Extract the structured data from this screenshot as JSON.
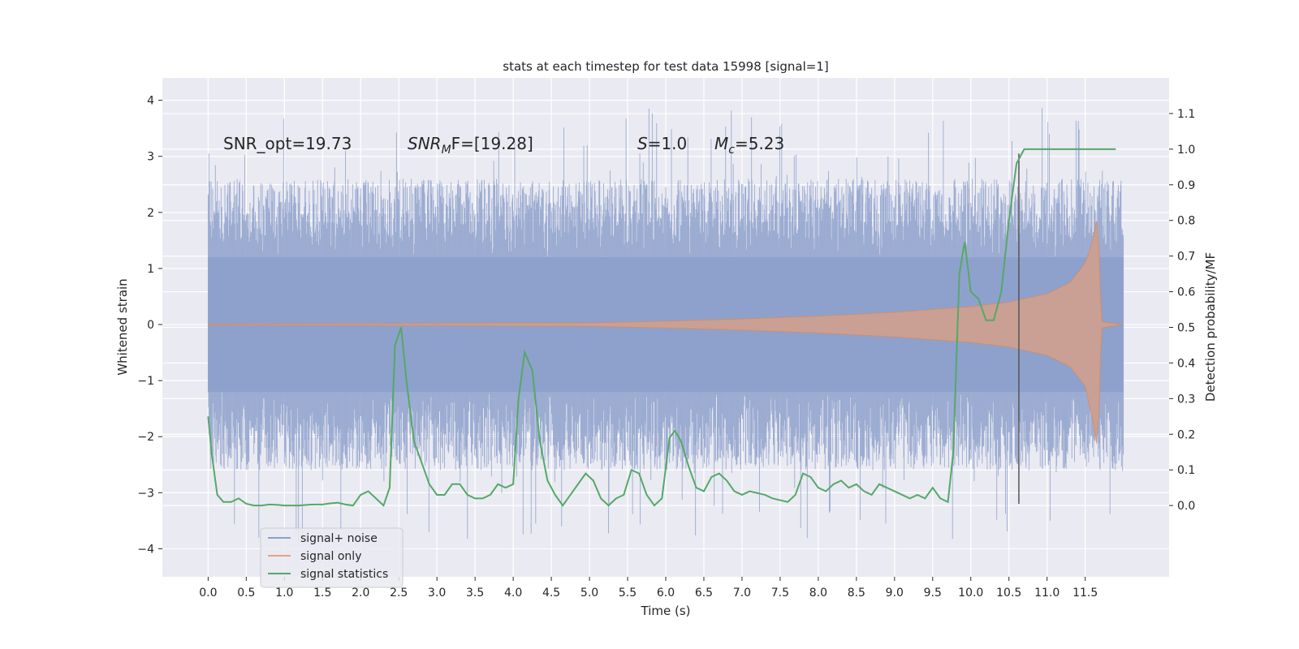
{
  "chart_data": {
    "type": "line",
    "title": "stats at each timestep for test data 15998 [signal=1]",
    "xlabel": "Time (s)",
    "ylabel": "Whitened strain",
    "y2label": "Detection probability/MF",
    "xlim": [
      -0.6,
      12.6
    ],
    "ylim": [
      -4.5,
      4.4
    ],
    "y2lim": [
      -0.2,
      1.2
    ],
    "grid": true,
    "x_ticks": [
      0.0,
      0.5,
      1.0,
      1.5,
      2.0,
      2.5,
      3.0,
      3.5,
      4.0,
      4.5,
      5.0,
      5.5,
      6.0,
      6.5,
      7.0,
      7.5,
      8.0,
      8.5,
      9.0,
      9.5,
      10.0,
      10.5,
      11.0,
      11.5
    ],
    "x_tick_labels": [
      "0.0",
      "0.5",
      "1.0",
      "1.5",
      "2.0",
      "2.5",
      "3.0",
      "3.5",
      "4.0",
      "4.5",
      "5.0",
      "5.5",
      "6.0",
      "6.5",
      "7.0",
      "7.5",
      "8.0",
      "8.5",
      "9.0",
      "9.5",
      "10.0",
      "10.5",
      "11.0",
      "11.5"
    ],
    "y_ticks": [
      4,
      3,
      2,
      1,
      0,
      -1,
      -2,
      -3,
      -4
    ],
    "y_tick_labels": [
      "4",
      "3",
      "2",
      "1",
      "0",
      "−1",
      "−2",
      "−3",
      "−4"
    ],
    "y2_ticks": [
      1.1,
      1.0,
      0.9,
      0.8,
      0.7,
      0.6,
      0.5,
      0.4,
      0.3,
      0.2,
      0.1,
      0.0
    ],
    "y2_tick_labels": [
      "1.1",
      "1.0",
      "0.9",
      "0.8",
      "0.7",
      "0.6",
      "0.5",
      "0.4",
      "0.3",
      "0.2",
      "0.1",
      "0.0"
    ],
    "legend_position": "bottom-left",
    "legend": [
      "signal+ noise",
      "signal only",
      "signal statistics"
    ],
    "colors": {
      "noise": "#8da0cb",
      "signal": "#dd8452",
      "stats": "#55a868",
      "vline": "#555555",
      "background": "#eaeaf2",
      "grid": "#ffffff"
    },
    "annotations": {
      "snr_opt": "SNR_opt=19.73",
      "snr_mf_sym": "SNR",
      "snr_mf_sub": "M",
      "snr_mf_rest": "F=[19.28]",
      "s_sym": "S",
      "s_rest": "=1.0",
      "mc_sym": "M",
      "mc_sub": "c",
      "mc_rest": "=5.23"
    },
    "vline_x": 10.63,
    "noise": {
      "t_start": 0.0,
      "t_end": 12.0,
      "band_upper": 1.2,
      "band_lower": -1.2,
      "typical_max": 2.6,
      "typical_min": -2.6,
      "overall_max": 3.9,
      "overall_min": -3.9
    },
    "signal_envelope": {
      "t": [
        0.0,
        3.0,
        5.0,
        6.0,
        7.0,
        8.0,
        9.0,
        10.0,
        10.5,
        11.0,
        11.3,
        11.5,
        11.6,
        11.65,
        11.68,
        11.7,
        11.72,
        12.0
      ],
      "amp": [
        0.01,
        0.02,
        0.03,
        0.06,
        0.1,
        0.15,
        0.22,
        0.32,
        0.4,
        0.55,
        0.75,
        1.1,
        1.5,
        1.85,
        1.4,
        0.5,
        0.05,
        0.0
      ]
    },
    "stats": {
      "x": [
        0.0,
        0.05,
        0.12,
        0.2,
        0.3,
        0.4,
        0.5,
        0.6,
        0.7,
        0.8,
        0.9,
        1.0,
        1.1,
        1.2,
        1.3,
        1.4,
        1.5,
        1.6,
        1.7,
        1.8,
        1.9,
        2.0,
        2.1,
        2.2,
        2.3,
        2.38,
        2.45,
        2.53,
        2.6,
        2.7,
        2.8,
        2.9,
        3.0,
        3.1,
        3.2,
        3.3,
        3.4,
        3.5,
        3.6,
        3.7,
        3.8,
        3.9,
        4.0,
        4.07,
        4.15,
        4.25,
        4.35,
        4.45,
        4.55,
        4.65,
        4.75,
        4.85,
        4.95,
        5.05,
        5.15,
        5.25,
        5.35,
        5.45,
        5.55,
        5.65,
        5.75,
        5.85,
        5.95,
        6.05,
        6.12,
        6.2,
        6.3,
        6.4,
        6.5,
        6.6,
        6.7,
        6.8,
        6.9,
        7.0,
        7.1,
        7.2,
        7.3,
        7.4,
        7.5,
        7.6,
        7.7,
        7.8,
        7.9,
        8.0,
        8.1,
        8.2,
        8.3,
        8.4,
        8.5,
        8.6,
        8.7,
        8.8,
        8.9,
        9.0,
        9.1,
        9.2,
        9.3,
        9.4,
        9.5,
        9.6,
        9.7,
        9.77,
        9.85,
        9.92,
        10.0,
        10.1,
        10.2,
        10.3,
        10.4,
        10.5,
        10.6,
        10.7,
        10.8,
        10.9,
        11.0,
        11.3,
        11.6,
        11.9
      ],
      "y": [
        0.25,
        0.14,
        0.03,
        0.01,
        0.01,
        0.02,
        0.005,
        0.0,
        0.0,
        0.003,
        0.002,
        0.0,
        0.0,
        0.0,
        0.002,
        0.003,
        0.003,
        0.006,
        0.008,
        0.003,
        0.0,
        0.03,
        0.04,
        0.02,
        0.0,
        0.05,
        0.45,
        0.5,
        0.35,
        0.18,
        0.12,
        0.06,
        0.03,
        0.03,
        0.06,
        0.06,
        0.03,
        0.02,
        0.02,
        0.03,
        0.06,
        0.05,
        0.06,
        0.3,
        0.43,
        0.38,
        0.18,
        0.07,
        0.03,
        0.0,
        0.03,
        0.06,
        0.09,
        0.07,
        0.02,
        0.0,
        0.02,
        0.03,
        0.1,
        0.09,
        0.03,
        0.0,
        0.02,
        0.19,
        0.21,
        0.18,
        0.11,
        0.05,
        0.04,
        0.08,
        0.09,
        0.07,
        0.04,
        0.03,
        0.04,
        0.035,
        0.03,
        0.02,
        0.015,
        0.01,
        0.03,
        0.09,
        0.08,
        0.05,
        0.04,
        0.06,
        0.07,
        0.05,
        0.06,
        0.04,
        0.03,
        0.06,
        0.05,
        0.04,
        0.03,
        0.02,
        0.03,
        0.02,
        0.05,
        0.02,
        0.01,
        0.15,
        0.65,
        0.74,
        0.6,
        0.58,
        0.52,
        0.52,
        0.6,
        0.8,
        0.96,
        1.0,
        1.0,
        1.0,
        1.0,
        1.0,
        1.0,
        1.0
      ]
    }
  }
}
